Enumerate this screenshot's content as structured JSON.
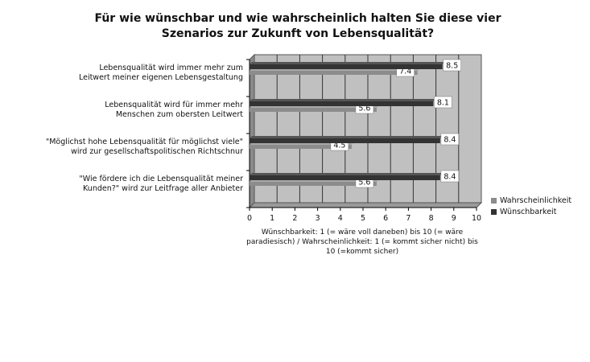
{
  "chart_data": {
    "type": "bar",
    "orientation": "horizontal",
    "title": "Für wie wünschbar und wie wahrscheinlich halten Sie diese vier Szenarios zur Zukunft von Lebensqualität?",
    "categories": [
      "Lebensqualität wird immer mehr zum Leitwert meiner eigenen Lebensgestaltung",
      "Lebensqualität wird für immer mehr Menschen zum obersten Leitwert",
      "\"Möglichst hohe Lebensqualität für möglichst viele\" wird zur gesellschaftspolitischen Richtschnur",
      "\"Wie fördere ich die Lebensqualität meiner Kunden?\" wird zur Leitfrage aller Anbieter"
    ],
    "series": [
      {
        "name": "Wahrscheinlichkeit",
        "values": [
          7.4,
          5.6,
          4.5,
          5.6
        ],
        "color": "#8c8c8c"
      },
      {
        "name": "Wünschbarkeit",
        "values": [
          8.5,
          8.1,
          8.4,
          8.4
        ],
        "color": "#333333"
      }
    ],
    "xlim": [
      0,
      10
    ],
    "xticks": [
      "0",
      "1",
      "2",
      "3",
      "4",
      "5",
      "6",
      "7",
      "8",
      "9",
      "10"
    ],
    "xlabel": "Wünschbarkeit: 1 (= wäre voll daneben) bis 10 (= wäre paradiesisch) / Wahrscheinlichkeit: 1 (= kommt sicher nicht) bis 10 (=kommt sicher)",
    "grid": true,
    "legend": "right",
    "colors": {
      "plot_background": "#c0c0c0",
      "gridline": "#333333"
    }
  }
}
